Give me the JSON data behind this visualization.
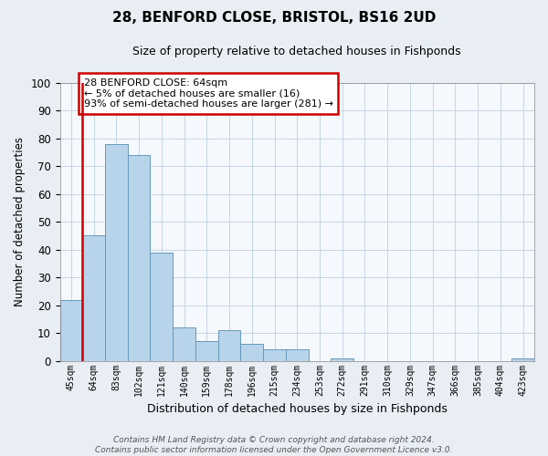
{
  "title": "28, BENFORD CLOSE, BRISTOL, BS16 2UD",
  "subtitle": "Size of property relative to detached houses in Fishponds",
  "xlabel": "Distribution of detached houses by size in Fishponds",
  "ylabel": "Number of detached properties",
  "bin_labels": [
    "45sqm",
    "64sqm",
    "83sqm",
    "102sqm",
    "121sqm",
    "140sqm",
    "159sqm",
    "178sqm",
    "196sqm",
    "215sqm",
    "234sqm",
    "253sqm",
    "272sqm",
    "291sqm",
    "310sqm",
    "329sqm",
    "347sqm",
    "366sqm",
    "385sqm",
    "404sqm",
    "423sqm"
  ],
  "bar_heights": [
    22,
    45,
    78,
    74,
    39,
    12,
    7,
    11,
    6,
    4,
    4,
    0,
    1,
    0,
    0,
    0,
    0,
    0,
    0,
    0,
    1
  ],
  "bar_color": "#b8d4ea",
  "bar_edge_color": "#6699bb",
  "highlight_bin": 1,
  "highlight_color": "#cc0000",
  "annotation_text": "28 BENFORD CLOSE: 64sqm\n← 5% of detached houses are smaller (16)\n93% of semi-detached houses are larger (281) →",
  "annotation_box_edge": "#cc0000",
  "ylim": [
    0,
    100
  ],
  "yticks": [
    0,
    10,
    20,
    30,
    40,
    50,
    60,
    70,
    80,
    90,
    100
  ],
  "footnote": "Contains HM Land Registry data © Crown copyright and database right 2024.\nContains public sector information licensed under the Open Government Licence v3.0.",
  "background_color": "#e8eef4",
  "plot_bg_color": "#f5f8fc"
}
